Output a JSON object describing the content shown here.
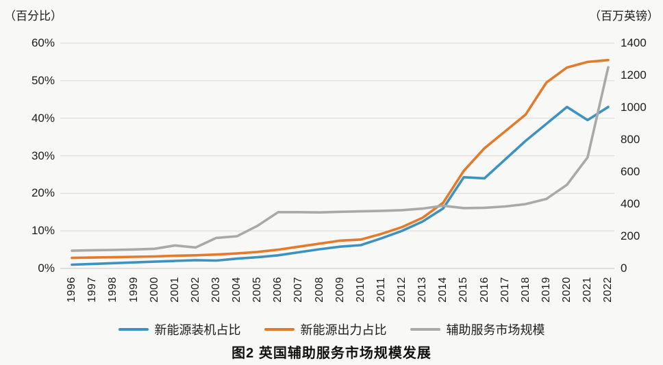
{
  "caption": "图2  英国辅助服务市场规模发展",
  "chart_data": {
    "type": "line",
    "title": "图2 英国辅助服务市场规模发展",
    "grid": true,
    "legend_position": "bottom",
    "categories": [
      "1996",
      "1997",
      "1998",
      "1999",
      "2000",
      "2001",
      "2002",
      "2003",
      "2004",
      "2005",
      "2006",
      "2007",
      "2008",
      "2009",
      "2010",
      "2011",
      "2012",
      "2013",
      "2014",
      "2015",
      "2016",
      "2017",
      "2018",
      "2019",
      "2020",
      "2021",
      "2022"
    ],
    "left_axis": {
      "label": "（百分比）",
      "ticks": [
        "60%",
        "50%",
        "40%",
        "30%",
        "20%",
        "10%",
        "0%"
      ],
      "min": 0,
      "max": 60,
      "unit": "%"
    },
    "right_axis": {
      "label": "（百万英镑）",
      "ticks": [
        "1400",
        "1200",
        "1000",
        "800",
        "600",
        "400",
        "200",
        "0"
      ],
      "min": 0,
      "max": 1400,
      "unit": "百万英镑"
    },
    "series": [
      {
        "name": "新能源装机占比",
        "axis": "left",
        "color": "#3d93c0",
        "values": [
          1.0,
          1.2,
          1.4,
          1.6,
          1.8,
          2.0,
          2.2,
          2.1,
          2.6,
          3.0,
          3.5,
          4.3,
          5.1,
          5.8,
          6.2,
          8.0,
          10.0,
          12.5,
          16.0,
          24.3,
          24.0,
          29.0,
          34.0,
          38.5,
          43.0,
          39.5,
          43.0
        ]
      },
      {
        "name": "新能源出力占比",
        "axis": "left",
        "color": "#e47b2c",
        "values": [
          2.8,
          2.9,
          3.0,
          3.1,
          3.2,
          3.4,
          3.5,
          3.7,
          4.0,
          4.4,
          5.0,
          5.8,
          6.6,
          7.4,
          7.7,
          9.2,
          11.0,
          13.5,
          17.5,
          26.0,
          32.0,
          36.5,
          41.0,
          49.5,
          53.5,
          55.0,
          55.5
        ]
      },
      {
        "name": "辅助服务市场规模",
        "axis": "right",
        "color": "#a9a9a9",
        "values": [
          110,
          113,
          115,
          118,
          122,
          143,
          130,
          190,
          200,
          265,
          350,
          350,
          348,
          352,
          355,
          358,
          362,
          372,
          390,
          375,
          377,
          385,
          400,
          432,
          520,
          690,
          1250
        ]
      }
    ]
  },
  "style": {
    "gridline_color": "#d9d9d9",
    "baseline_color": "#c4c4c4",
    "line_width": 3.6
  }
}
